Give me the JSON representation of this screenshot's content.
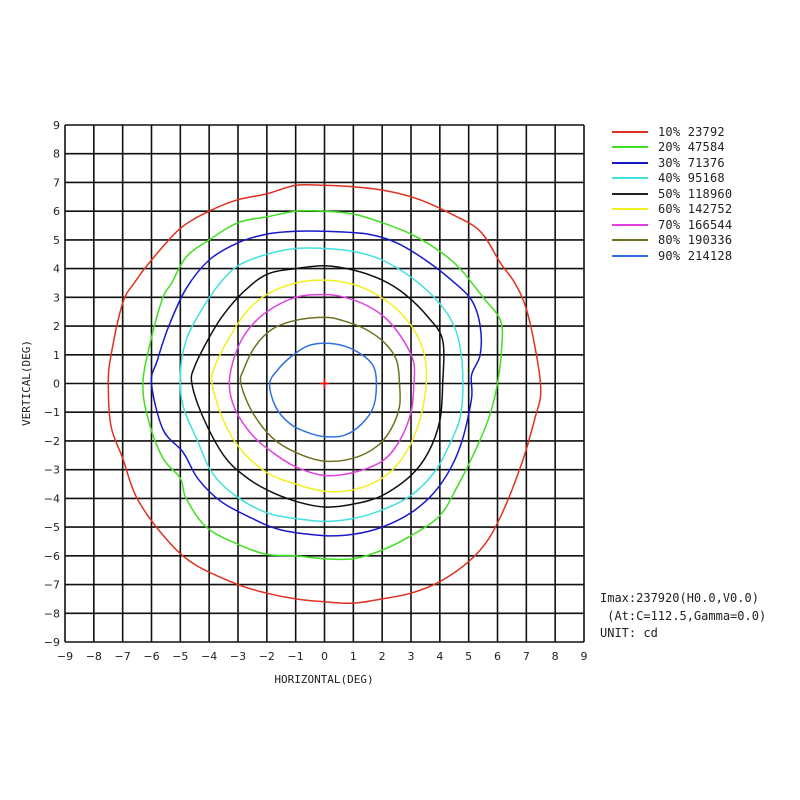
{
  "chart_data": {
    "type": "contour",
    "title": "",
    "xlabel": "HORIZONTAL(DEG)",
    "ylabel": "VERTICAL(DEG)",
    "xlim": [
      -9,
      9
    ],
    "ylim": [
      -9,
      9
    ],
    "grid": true,
    "x_ticks": [
      -9,
      -8,
      -7,
      -6,
      -5,
      -4,
      -3,
      -2,
      -1,
      0,
      1,
      2,
      3,
      4,
      5,
      6,
      7,
      8,
      9
    ],
    "y_ticks": [
      9,
      8,
      7,
      6,
      5,
      4,
      3,
      2,
      1,
      0,
      -1,
      -2,
      -3,
      -4,
      -5,
      -6,
      -7,
      -8,
      -9
    ],
    "legend_position": "right",
    "center_marker": {
      "h": 0,
      "v": 0,
      "color": "#ff0000"
    },
    "series": [
      {
        "name": "10% 23792",
        "percent": 10,
        "value": 23792,
        "color": "#e03020",
        "points": [
          [
            0,
            6.9
          ],
          [
            -1,
            6.9
          ],
          [
            -2,
            6.6
          ],
          [
            -3,
            6.4
          ],
          [
            -4,
            6.0
          ],
          [
            -5,
            5.4
          ],
          [
            -6,
            4.3
          ],
          [
            -6.6,
            3.5
          ],
          [
            -7,
            2.8
          ],
          [
            -7.4,
            1.0
          ],
          [
            -7.5,
            0
          ],
          [
            -7.4,
            -1.5
          ],
          [
            -7,
            -2.6
          ],
          [
            -6.5,
            -4
          ],
          [
            -5.5,
            -5.4
          ],
          [
            -4.5,
            -6.3
          ],
          [
            -3,
            -7
          ],
          [
            -2,
            -7.3
          ],
          [
            -1,
            -7.5
          ],
          [
            0,
            -7.6
          ],
          [
            1,
            -7.65
          ],
          [
            2,
            -7.5
          ],
          [
            3,
            -7.3
          ],
          [
            4,
            -6.9
          ],
          [
            5,
            -6.2
          ],
          [
            5.7,
            -5.4
          ],
          [
            6.3,
            -4.2
          ],
          [
            6.9,
            -2.6
          ],
          [
            7.3,
            -1.2
          ],
          [
            7.5,
            -0.3
          ],
          [
            7.35,
            1
          ],
          [
            7.0,
            2.6
          ],
          [
            6.6,
            3.5
          ],
          [
            6.1,
            4.2
          ],
          [
            5.4,
            5.3
          ],
          [
            4.4,
            5.9
          ],
          [
            3.3,
            6.4
          ],
          [
            2.2,
            6.7
          ],
          [
            1,
            6.85
          ]
        ]
      },
      {
        "name": "20% 47584",
        "percent": 20,
        "value": 47584,
        "color": "#40e020",
        "points": [
          [
            0,
            6.0
          ],
          [
            -1,
            6.0
          ],
          [
            -2,
            5.8
          ],
          [
            -3,
            5.6
          ],
          [
            -4,
            5.0
          ],
          [
            -4.8,
            4.4
          ],
          [
            -5.3,
            3.5
          ],
          [
            -5.6,
            3.0
          ],
          [
            -6,
            1.6
          ],
          [
            -6.3,
            0
          ],
          [
            -6.1,
            -1.3
          ],
          [
            -5.6,
            -2.6
          ],
          [
            -5.0,
            -3.3
          ],
          [
            -4.8,
            -4.0
          ],
          [
            -4.1,
            -5.0
          ],
          [
            -3,
            -5.6
          ],
          [
            -2,
            -5.95
          ],
          [
            -1,
            -6.0
          ],
          [
            0,
            -6.1
          ],
          [
            1,
            -6.1
          ],
          [
            2,
            -5.8
          ],
          [
            3,
            -5.3
          ],
          [
            4,
            -4.6
          ],
          [
            4.6,
            -3.6
          ],
          [
            5.2,
            -2.4
          ],
          [
            5.7,
            -1.2
          ],
          [
            6.0,
            0
          ],
          [
            6.15,
            1.3
          ],
          [
            6.1,
            2.2
          ],
          [
            5.5,
            3.0
          ],
          [
            4.7,
            4.0
          ],
          [
            4,
            4.6
          ],
          [
            3,
            5.2
          ],
          [
            2,
            5.6
          ],
          [
            1,
            5.9
          ]
        ]
      },
      {
        "name": "30% 71376",
        "percent": 30,
        "value": 71376,
        "color": "#1818c8",
        "points": [
          [
            0,
            5.3
          ],
          [
            -1,
            5.3
          ],
          [
            -2,
            5.2
          ],
          [
            -3,
            4.9
          ],
          [
            -4,
            4.3
          ],
          [
            -4.8,
            3.3
          ],
          [
            -5.4,
            2.0
          ],
          [
            -5.8,
            0.8
          ],
          [
            -6,
            0
          ],
          [
            -5.6,
            -1.6
          ],
          [
            -4.9,
            -2.4
          ],
          [
            -4.4,
            -3.3
          ],
          [
            -3.6,
            -4.1
          ],
          [
            -2.5,
            -4.7
          ],
          [
            -1.5,
            -5.1
          ],
          [
            0,
            -5.3
          ],
          [
            1,
            -5.25
          ],
          [
            2,
            -5.0
          ],
          [
            3,
            -4.5
          ],
          [
            3.8,
            -3.8
          ],
          [
            4.4,
            -2.9
          ],
          [
            4.8,
            -1.9
          ],
          [
            5.1,
            -0.5
          ],
          [
            5.1,
            0.3
          ],
          [
            5.4,
            1.0
          ],
          [
            5.4,
            2.0
          ],
          [
            5.1,
            2.9
          ],
          [
            4.4,
            3.6
          ],
          [
            3.5,
            4.3
          ],
          [
            2.5,
            4.9
          ],
          [
            1.5,
            5.2
          ]
        ]
      },
      {
        "name": "40% 95168",
        "percent": 40,
        "value": 95168,
        "color": "#40e0e0",
        "points": [
          [
            0,
            4.7
          ],
          [
            -1,
            4.7
          ],
          [
            -2,
            4.5
          ],
          [
            -3,
            4.1
          ],
          [
            -3.7,
            3.4
          ],
          [
            -4.3,
            2.5
          ],
          [
            -4.8,
            1.5
          ],
          [
            -5.0,
            0.3
          ],
          [
            -4.9,
            -0.8
          ],
          [
            -4.4,
            -2.0
          ],
          [
            -3.9,
            -3.1
          ],
          [
            -3.1,
            -3.9
          ],
          [
            -2,
            -4.5
          ],
          [
            -1,
            -4.7
          ],
          [
            0,
            -4.8
          ],
          [
            1,
            -4.7
          ],
          [
            2,
            -4.4
          ],
          [
            3,
            -3.9
          ],
          [
            3.8,
            -3.1
          ],
          [
            4.3,
            -2.2
          ],
          [
            4.7,
            -1.2
          ],
          [
            4.8,
            0
          ],
          [
            4.7,
            1.3
          ],
          [
            4.4,
            2.2
          ],
          [
            3.8,
            3.0
          ],
          [
            3,
            3.7
          ],
          [
            2,
            4.3
          ],
          [
            1,
            4.6
          ]
        ]
      },
      {
        "name": "50% 118960",
        "percent": 50,
        "value": 118960,
        "color": "#101010",
        "points": [
          [
            0,
            4.1
          ],
          [
            -1,
            4.0
          ],
          [
            -2,
            3.8
          ],
          [
            -2.8,
            3.2
          ],
          [
            -3.5,
            2.4
          ],
          [
            -4.0,
            1.6
          ],
          [
            -4.5,
            0.6
          ],
          [
            -4.6,
            0
          ],
          [
            -4.2,
            -1.2
          ],
          [
            -3.5,
            -2.5
          ],
          [
            -2.8,
            -3.2
          ],
          [
            -2,
            -3.7
          ],
          [
            -1,
            -4.1
          ],
          [
            0,
            -4.3
          ],
          [
            1,
            -4.2
          ],
          [
            2,
            -3.9
          ],
          [
            3,
            -3.2
          ],
          [
            3.6,
            -2.4
          ],
          [
            4.0,
            -1.3
          ],
          [
            4.1,
            0
          ],
          [
            4.1,
            1.5
          ],
          [
            3.6,
            2.3
          ],
          [
            2.8,
            3.1
          ],
          [
            2,
            3.6
          ],
          [
            1,
            3.95
          ]
        ]
      },
      {
        "name": "60% 142752",
        "percent": 60,
        "value": 142752,
        "color": "#f0f020",
        "points": [
          [
            0,
            3.6
          ],
          [
            -1,
            3.5
          ],
          [
            -2,
            3.1
          ],
          [
            -2.7,
            2.5
          ],
          [
            -3.3,
            1.6
          ],
          [
            -3.8,
            0.6
          ],
          [
            -3.9,
            0
          ],
          [
            -3.5,
            -1.3
          ],
          [
            -2.9,
            -2.3
          ],
          [
            -2,
            -3.1
          ],
          [
            -1,
            -3.5
          ],
          [
            0,
            -3.75
          ],
          [
            1,
            -3.7
          ],
          [
            2,
            -3.3
          ],
          [
            2.7,
            -2.6
          ],
          [
            3.2,
            -1.6
          ],
          [
            3.5,
            -0.3
          ],
          [
            3.5,
            0.8
          ],
          [
            3.2,
            1.7
          ],
          [
            2.6,
            2.5
          ],
          [
            1.8,
            3.1
          ],
          [
            1,
            3.45
          ]
        ]
      },
      {
        "name": "70% 166544",
        "percent": 70,
        "value": 166544,
        "color": "#e040e0",
        "points": [
          [
            0,
            3.1
          ],
          [
            -1,
            3.0
          ],
          [
            -2,
            2.5
          ],
          [
            -2.7,
            1.8
          ],
          [
            -3.1,
            1.0
          ],
          [
            -3.3,
            0
          ],
          [
            -3.1,
            -0.9
          ],
          [
            -2.5,
            -1.8
          ],
          [
            -1.8,
            -2.4
          ],
          [
            -1,
            -2.9
          ],
          [
            0,
            -3.2
          ],
          [
            1,
            -3.1
          ],
          [
            2,
            -2.7
          ],
          [
            2.6,
            -2.0
          ],
          [
            3.0,
            -1.0
          ],
          [
            3.1,
            0
          ],
          [
            3.1,
            0.7
          ],
          [
            2.8,
            1.4
          ],
          [
            2.2,
            2.2
          ],
          [
            1.5,
            2.7
          ],
          [
            0.7,
            3.0
          ]
        ]
      },
      {
        "name": "80% 190336",
        "percent": 80,
        "value": 190336,
        "color": "#707020",
        "points": [
          [
            0,
            2.3
          ],
          [
            -1,
            2.2
          ],
          [
            -1.8,
            1.9
          ],
          [
            -2.4,
            1.3
          ],
          [
            -2.8,
            0.5
          ],
          [
            -2.9,
            0
          ],
          [
            -2.5,
            -1.0
          ],
          [
            -1.8,
            -1.9
          ],
          [
            -1,
            -2.4
          ],
          [
            0,
            -2.7
          ],
          [
            1,
            -2.6
          ],
          [
            1.8,
            -2.2
          ],
          [
            2.3,
            -1.6
          ],
          [
            2.6,
            -0.8
          ],
          [
            2.6,
            0
          ],
          [
            2.5,
            0.8
          ],
          [
            2.1,
            1.4
          ],
          [
            1.4,
            1.9
          ],
          [
            0.6,
            2.2
          ]
        ]
      },
      {
        "name": "90% 214128",
        "percent": 90,
        "value": 214128,
        "color": "#3070e0",
        "points": [
          [
            0,
            1.4
          ],
          [
            -0.6,
            1.3
          ],
          [
            -1.2,
            0.9
          ],
          [
            -1.6,
            0.5
          ],
          [
            -1.9,
            0
          ],
          [
            -1.7,
            -0.8
          ],
          [
            -1.2,
            -1.4
          ],
          [
            -0.6,
            -1.7
          ],
          [
            0,
            -1.85
          ],
          [
            0.7,
            -1.8
          ],
          [
            1.3,
            -1.4
          ],
          [
            1.7,
            -0.8
          ],
          [
            1.8,
            0
          ],
          [
            1.7,
            0.6
          ],
          [
            1.3,
            1.0
          ],
          [
            0.7,
            1.3
          ]
        ]
      }
    ]
  },
  "legend": {
    "items": [
      {
        "label": "10% 23792",
        "color": "#e03020"
      },
      {
        "label": "20% 47584",
        "color": "#40e020"
      },
      {
        "label": "30% 71376",
        "color": "#1818c8"
      },
      {
        "label": "40% 95168",
        "color": "#40e0e0"
      },
      {
        "label": "50% 118960",
        "color": "#202020"
      },
      {
        "label": "60% 142752",
        "color": "#f0f020"
      },
      {
        "label": "70% 166544",
        "color": "#e040e0"
      },
      {
        "label": "80% 190336",
        "color": "#707020"
      },
      {
        "label": "90% 214128",
        "color": "#3070e0"
      }
    ]
  },
  "info": {
    "imax": "Imax:237920(H0.0,V0.0)",
    "at": " (At:C=112.5,Gamma=0.0)",
    "unit": "UNIT: cd"
  }
}
